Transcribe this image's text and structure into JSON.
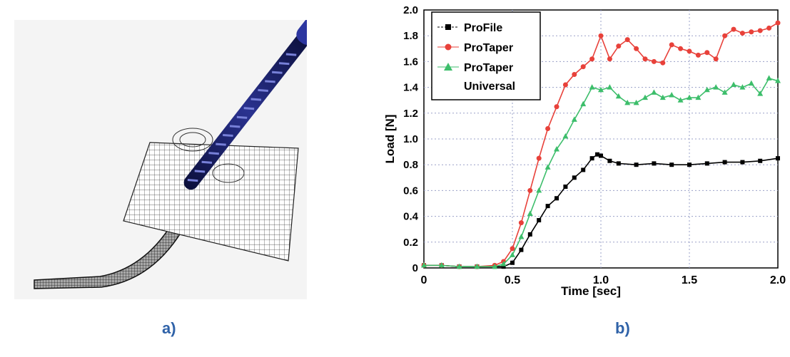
{
  "captions": {
    "a": "a)",
    "b": "b)"
  },
  "chart_data": {
    "type": "line",
    "xlabel": "Time [sec]",
    "ylabel": "Load [N]",
    "xlim": [
      0,
      2.0
    ],
    "ylim": [
      0,
      2.0
    ],
    "x_ticks": [
      "0",
      "0.5",
      "1.0",
      "1.5",
      "2.0"
    ],
    "y_ticks": [
      "0",
      "0.2",
      "0.4",
      "0.6",
      "0.8",
      "1.0",
      "1.2",
      "1.4",
      "1.6",
      "1.8",
      "2.0"
    ],
    "grid": true,
    "legend_position": "top-left",
    "series": [
      {
        "name": "ProFile",
        "color": "#000000",
        "marker": "square",
        "x": [
          0,
          0.1,
          0.2,
          0.3,
          0.4,
          0.45,
          0.5,
          0.55,
          0.6,
          0.65,
          0.7,
          0.75,
          0.8,
          0.85,
          0.9,
          0.95,
          0.98,
          1.0,
          1.05,
          1.1,
          1.2,
          1.3,
          1.4,
          1.5,
          1.6,
          1.7,
          1.8,
          1.9,
          2.0
        ],
        "y": [
          0.02,
          0.02,
          0.01,
          0.01,
          0.01,
          0.01,
          0.04,
          0.14,
          0.26,
          0.37,
          0.48,
          0.54,
          0.63,
          0.7,
          0.76,
          0.85,
          0.88,
          0.87,
          0.83,
          0.81,
          0.8,
          0.81,
          0.8,
          0.8,
          0.81,
          0.82,
          0.82,
          0.83,
          0.85
        ]
      },
      {
        "name": "ProTaper",
        "color": "#e8413a",
        "marker": "circle",
        "x": [
          0,
          0.1,
          0.2,
          0.3,
          0.4,
          0.45,
          0.5,
          0.55,
          0.6,
          0.65,
          0.7,
          0.75,
          0.8,
          0.85,
          0.9,
          0.95,
          1.0,
          1.05,
          1.1,
          1.15,
          1.2,
          1.25,
          1.3,
          1.35,
          1.4,
          1.45,
          1.5,
          1.55,
          1.6,
          1.65,
          1.7,
          1.75,
          1.8,
          1.85,
          1.9,
          1.95,
          2.0
        ],
        "y": [
          0.02,
          0.02,
          0.01,
          0.01,
          0.02,
          0.05,
          0.15,
          0.35,
          0.6,
          0.85,
          1.08,
          1.25,
          1.42,
          1.5,
          1.56,
          1.62,
          1.8,
          1.62,
          1.72,
          1.77,
          1.7,
          1.62,
          1.6,
          1.59,
          1.73,
          1.7,
          1.68,
          1.65,
          1.67,
          1.62,
          1.8,
          1.85,
          1.82,
          1.83,
          1.84,
          1.86,
          1.9
        ]
      },
      {
        "name": "ProTaper\nUniversal",
        "color": "#3dbe6b",
        "marker": "triangle",
        "x": [
          0,
          0.1,
          0.2,
          0.3,
          0.4,
          0.45,
          0.5,
          0.55,
          0.6,
          0.65,
          0.7,
          0.75,
          0.8,
          0.85,
          0.9,
          0.95,
          1.0,
          1.05,
          1.1,
          1.15,
          1.2,
          1.25,
          1.3,
          1.35,
          1.4,
          1.45,
          1.5,
          1.55,
          1.6,
          1.65,
          1.7,
          1.75,
          1.8,
          1.85,
          1.9,
          1.95,
          2.0
        ],
        "y": [
          0.02,
          0.02,
          0.01,
          0.01,
          0.01,
          0.03,
          0.1,
          0.24,
          0.42,
          0.6,
          0.78,
          0.92,
          1.02,
          1.15,
          1.27,
          1.4,
          1.38,
          1.4,
          1.33,
          1.28,
          1.28,
          1.32,
          1.36,
          1.32,
          1.34,
          1.3,
          1.32,
          1.32,
          1.38,
          1.4,
          1.36,
          1.42,
          1.4,
          1.43,
          1.35,
          1.47,
          1.45
        ]
      }
    ]
  }
}
